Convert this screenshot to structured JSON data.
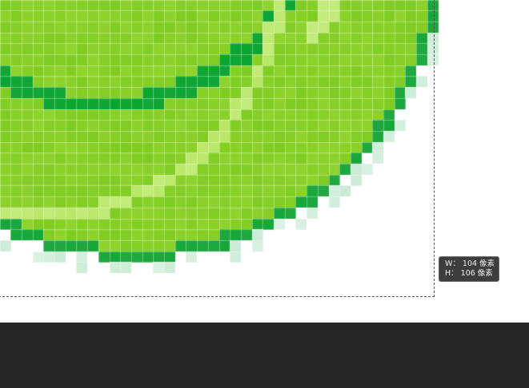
{
  "canvas": {
    "palette": {
      "background": "#ffffff",
      "lime_fill": "#7fcc22",
      "lime_light": "#a5dc3c",
      "highlight": "#c4ec7c",
      "dark_green": "#0aa531",
      "outline_green": "#22a843",
      "edge_light": "#9ad9b0",
      "grid_line": "#ffffff"
    }
  },
  "size_tooltip": {
    "width_label": "W：",
    "width_value": "104",
    "width_unit": "像素",
    "height_label": "H：",
    "height_value": "106",
    "height_unit": "像素"
  },
  "bottom_panel": {
    "color": "#262626"
  }
}
